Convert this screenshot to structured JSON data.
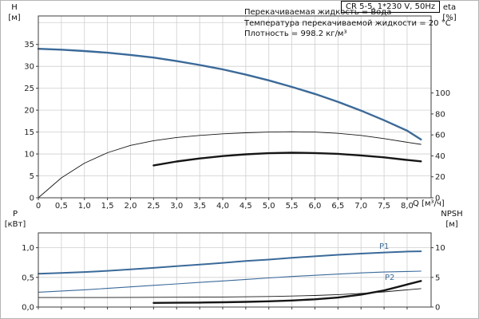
{
  "header": {
    "title_box": "CR 5-5, 1*230 V, 50Hz",
    "annotations": [
      "Перекачиваемая жидкость = Вода",
      "Температура перекачиваемой жидкости = 20 °C",
      "Плотность = 998.2 кг/м³"
    ]
  },
  "axes_labels": {
    "top_left_line1": "H",
    "top_left_line2": "[м]",
    "top_right_line1": "eta",
    "top_right_line2": "[%]",
    "bottom_left_line1": "P",
    "bottom_left_line2": "[кВт]",
    "bottom_right_line1": "NPSH",
    "bottom_right_line2": "[м]",
    "x_axis": "Q [м³/ч]"
  },
  "curve_labels": {
    "p1": "P1",
    "p2": "P2"
  },
  "colors": {
    "curve_blue": "#3a6a99",
    "curve_black": "#161616",
    "grid": "#cfcfcf",
    "axis": "#3c3c3c",
    "label": "#222222",
    "frame": "#b5b5b5"
  },
  "chart_data": [
    {
      "id": "qh-eta",
      "type": "line",
      "title": "CR 5-5, 1*230 V, 50Hz",
      "xlabel": "Q [м³/ч]",
      "x_range": [
        0,
        8.52
      ],
      "x_ticks": [
        0,
        0.5,
        1,
        1.5,
        2,
        2.5,
        3,
        3.5,
        4,
        4.5,
        5,
        5.5,
        6,
        6.5,
        7,
        7.5,
        8
      ],
      "show_x_labels": true,
      "grid": true,
      "grid_y": [
        5,
        10,
        15,
        20,
        25,
        30,
        35,
        40
      ],
      "y_left": {
        "label": "H [м]",
        "range": [
          0,
          41.5
        ],
        "ticks": [
          0,
          5,
          10,
          15,
          20,
          25,
          30,
          35
        ],
        "fmt": "int"
      },
      "y_right": {
        "label": "eta [%]",
        "range": [
          0,
          173.5
        ],
        "ticks": [
          0,
          20,
          40,
          60,
          80,
          100
        ],
        "fmt": "int"
      },
      "series": [
        {
          "name": "H-curve",
          "axis": "left",
          "color": "blue",
          "width": 2.4,
          "x": [
            0,
            0.5,
            1,
            1.5,
            2,
            2.5,
            3,
            3.5,
            4,
            4.5,
            5,
            5.5,
            6,
            6.5,
            7,
            7.5,
            8,
            8.3
          ],
          "y": [
            34,
            33.8,
            33.5,
            33.1,
            32.6,
            32,
            31.2,
            30.3,
            29.3,
            28.1,
            26.8,
            25.3,
            23.7,
            21.9,
            19.9,
            17.7,
            15.3,
            13.3
          ]
        },
        {
          "name": "eta-curve",
          "axis": "right",
          "color": "black",
          "width": 0.9,
          "x": [
            0,
            0.5,
            1,
            1.5,
            2,
            2.5,
            3,
            3.5,
            4,
            4.5,
            5,
            5.5,
            6,
            6.5,
            7,
            7.5,
            8,
            8.3
          ],
          "y": [
            0,
            19,
            33,
            43,
            50,
            54.5,
            57.5,
            59.5,
            61,
            62,
            62.7,
            63,
            62.7,
            61.5,
            59.5,
            56.5,
            53,
            51
          ]
        },
        {
          "name": "eta-pump-motor-curve",
          "axis": "right",
          "color": "black",
          "width": 2.4,
          "x": [
            2.5,
            3,
            3.5,
            4,
            4.5,
            5,
            5.5,
            6,
            6.5,
            7,
            7.5,
            8,
            8.3
          ],
          "y": [
            30.9,
            34.6,
            37.5,
            39.8,
            41.5,
            42.5,
            43,
            42.7,
            41.9,
            40.4,
            38.6,
            36.1,
            34.8
          ]
        }
      ]
    },
    {
      "id": "power-npsh",
      "type": "line",
      "xlabel": "",
      "x_range": [
        0,
        8.52
      ],
      "x_ticks": [
        0,
        0.5,
        1,
        1.5,
        2,
        2.5,
        3,
        3.5,
        4,
        4.5,
        5,
        5.5,
        6,
        6.5,
        7,
        7.5,
        8
      ],
      "show_x_labels": false,
      "grid": true,
      "grid_y": [
        0.5,
        1.0
      ],
      "y_left": {
        "label": "P [кВт]",
        "range": [
          0,
          1.25
        ],
        "ticks": [
          0,
          0.5,
          1
        ],
        "fmt": "comma1"
      },
      "y_right": {
        "label": "NPSH [м]",
        "range": [
          0,
          12.5
        ],
        "ticks": [
          0,
          5,
          10
        ],
        "fmt": "int"
      },
      "series": [
        {
          "name": "P1-curve",
          "axis": "left",
          "color": "blue",
          "width": 2,
          "x": [
            0,
            0.5,
            1,
            1.5,
            2,
            2.5,
            3,
            3.5,
            4,
            4.5,
            5,
            5.5,
            6,
            6.5,
            7,
            7.5,
            8,
            8.3
          ],
          "y": [
            0.56,
            0.575,
            0.59,
            0.61,
            0.635,
            0.66,
            0.69,
            0.715,
            0.745,
            0.775,
            0.8,
            0.83,
            0.855,
            0.88,
            0.9,
            0.92,
            0.935,
            0.94
          ]
        },
        {
          "name": "P2-curve",
          "axis": "left",
          "color": "blue",
          "width": 1.1,
          "x": [
            0,
            0.5,
            1,
            1.5,
            2,
            2.5,
            3,
            3.5,
            4,
            4.5,
            5,
            5.5,
            6,
            6.5,
            7,
            7.5,
            8,
            8.3
          ],
          "y": [
            0.25,
            0.27,
            0.29,
            0.315,
            0.34,
            0.365,
            0.39,
            0.415,
            0.44,
            0.465,
            0.49,
            0.515,
            0.535,
            0.555,
            0.575,
            0.59,
            0.6,
            0.605
          ]
        },
        {
          "name": "NPSH-curve-thin",
          "axis": "right",
          "color": "black",
          "width": 0.9,
          "x": [
            0,
            1,
            2,
            3,
            4,
            5,
            5.5,
            6,
            6.5,
            7,
            7.5,
            8,
            8.3
          ],
          "y": [
            1.6,
            1.6,
            1.62,
            1.65,
            1.7,
            1.78,
            1.85,
            1.95,
            2.1,
            2.3,
            2.55,
            2.9,
            3.1
          ]
        },
        {
          "name": "NPSH-curve",
          "axis": "right",
          "color": "black",
          "width": 2.4,
          "x": [
            2.5,
            3,
            3.5,
            4,
            4.5,
            5,
            5.5,
            6,
            6.5,
            7,
            7.5,
            8,
            8.3
          ],
          "y": [
            0.7,
            0.72,
            0.75,
            0.8,
            0.87,
            0.97,
            1.1,
            1.3,
            1.6,
            2.1,
            2.8,
            3.8,
            4.4
          ]
        }
      ]
    }
  ]
}
